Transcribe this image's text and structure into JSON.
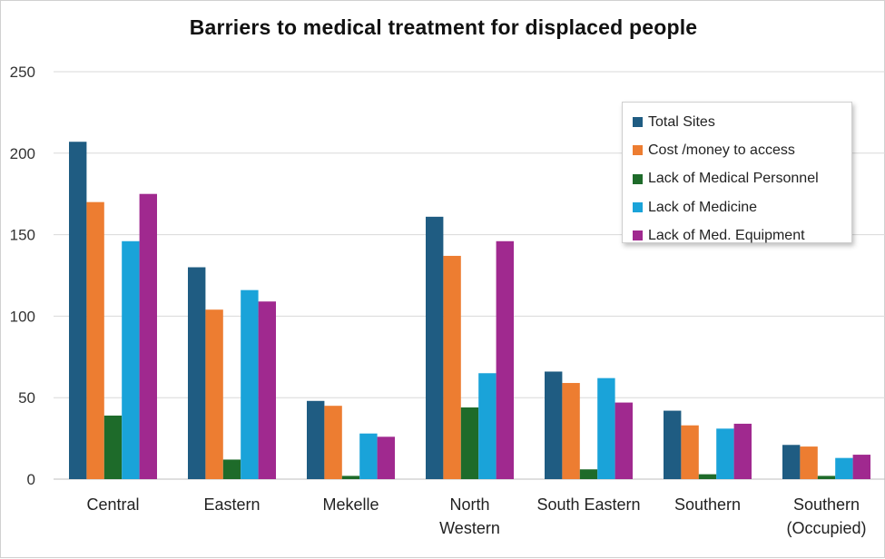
{
  "chart_data": {
    "type": "bar",
    "title": "Barriers to medical treatment for displaced people",
    "xlabel": "",
    "ylabel": "",
    "ylim": [
      0,
      250
    ],
    "yticks": [
      0,
      50,
      100,
      150,
      200,
      250
    ],
    "grid": true,
    "legend_position": "top-right",
    "categories": [
      {
        "name": "Central",
        "lines": [
          "Central"
        ]
      },
      {
        "name": "Eastern",
        "lines": [
          "Eastern"
        ]
      },
      {
        "name": "Mekelle",
        "lines": [
          "Mekelle"
        ]
      },
      {
        "name": "North Western",
        "lines": [
          "North",
          "Western"
        ]
      },
      {
        "name": "South Eastern",
        "lines": [
          "South Eastern"
        ]
      },
      {
        "name": "Southern",
        "lines": [
          "Southern"
        ]
      },
      {
        "name": "Southern (Occupied)",
        "lines": [
          "Southern",
          "(Occupied)"
        ]
      }
    ],
    "series": [
      {
        "name": "Total Sites",
        "color": "#1f5c82",
        "values": [
          207,
          130,
          48,
          161,
          66,
          42,
          21
        ]
      },
      {
        "name": "Cost /money to access",
        "color": "#ed7d31",
        "values": [
          170,
          104,
          45,
          137,
          59,
          33,
          20
        ]
      },
      {
        "name": "Lack of Medical Personnel",
        "color": "#1e6b2a",
        "values": [
          39,
          12,
          2,
          44,
          6,
          3,
          2
        ]
      },
      {
        "name": "Lack of Medicine",
        "color": "#1aa3d9",
        "values": [
          146,
          116,
          28,
          65,
          62,
          31,
          13
        ]
      },
      {
        "name": "Lack of Med. Equipment",
        "color": "#a0298f",
        "values": [
          175,
          109,
          26,
          146,
          47,
          34,
          15
        ]
      }
    ]
  }
}
